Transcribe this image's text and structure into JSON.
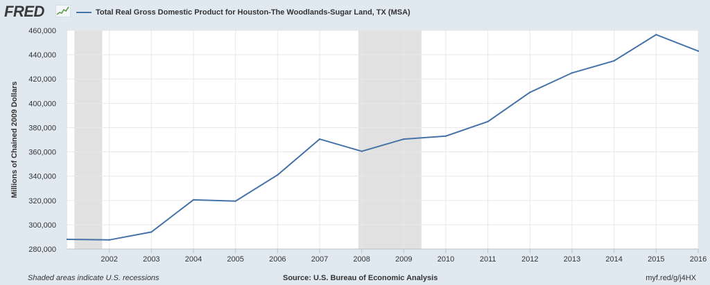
{
  "header": {
    "logo_text": "FRED",
    "logo_icon": "sparkline-icon",
    "legend_label": "Total Real Gross Domestic Product for Houston-The Woodlands-Sugar Land, TX (MSA)"
  },
  "footer": {
    "note": "Shaded areas indicate U.S. recessions",
    "source": "Source: U.S. Bureau of Economic Analysis",
    "link": "myf.red/g/j4HX"
  },
  "colors": {
    "line": "#4572a7",
    "recession": "#e1e1e1",
    "background": "#e1e9f0",
    "plot": "#ffffff",
    "grid": "#e8e8e8"
  },
  "chart_data": {
    "type": "line",
    "title": "",
    "xlabel": "",
    "ylabel": "Millions of Chained 2009 Dollars",
    "xlim": [
      2001,
      2016
    ],
    "ylim": [
      280000,
      460000
    ],
    "yticks": [
      280000,
      300000,
      320000,
      340000,
      360000,
      380000,
      400000,
      420000,
      440000,
      460000
    ],
    "ytick_labels": [
      "280,000",
      "300,000",
      "320,000",
      "340,000",
      "360,000",
      "380,000",
      "400,000",
      "420,000",
      "440,000",
      "460,000"
    ],
    "xticks": [
      2002,
      2003,
      2004,
      2005,
      2006,
      2007,
      2008,
      2009,
      2010,
      2011,
      2012,
      2013,
      2014,
      2015,
      2016
    ],
    "xtick_labels": [
      "2002",
      "2003",
      "2004",
      "2005",
      "2006",
      "2007",
      "2008",
      "2009",
      "2010",
      "2011",
      "2012",
      "2013",
      "2014",
      "2015",
      "2016"
    ],
    "grid": true,
    "recessions": [
      {
        "start": 2001.17,
        "end": 2001.83
      },
      {
        "start": 2007.92,
        "end": 2009.42
      }
    ],
    "series": [
      {
        "name": "Total Real Gross Domestic Product for Houston-The Woodlands-Sugar Land, TX (MSA)",
        "x": [
          2001,
          2002,
          2003,
          2004,
          2005,
          2006,
          2007,
          2008,
          2009,
          2010,
          2011,
          2012,
          2013,
          2014,
          2015,
          2016
        ],
        "y": [
          288000,
          287500,
          294000,
          320500,
          319500,
          341000,
          370500,
          360500,
          370500,
          373000,
          385000,
          409000,
          425000,
          435000,
          456500,
          443000
        ]
      }
    ]
  }
}
